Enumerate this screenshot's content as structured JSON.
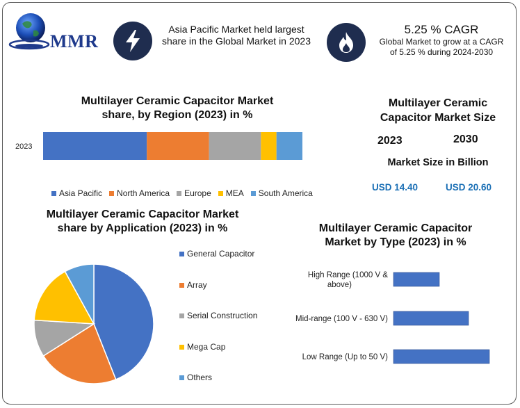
{
  "brand": {
    "logo_text": "MMR"
  },
  "header": {
    "highlight_text": "Asia Pacific Market held largest share in the Global Market in 2023",
    "cagr_title": "5.25 % CAGR",
    "cagr_text": "Global Market to grow at a CAGR of 5.25 % during 2024-2030"
  },
  "icons": {
    "bolt": "lightning-bolt-icon",
    "flame": "flame-icon",
    "globe": "globe-icon"
  },
  "region_chart": {
    "title": "Multilayer Ceramic Capacitor Market share, by Region (2023) in %"
  },
  "market_size": {
    "title": "Multilayer Ceramic Capacitor Market Size",
    "year_1": "2023",
    "year_2": "2030",
    "subtitle": "Market Size in Billion",
    "value_1": "USD 14.40",
    "value_2": "USD 20.60",
    "value_color": "#1a6fb5"
  },
  "application_chart": {
    "title": "Multilayer Ceramic Capacitor Market share by Application (2023) in %"
  },
  "type_chart": {
    "title": "Multilayer Ceramic Capacitor Market by Type (2023) in %"
  },
  "chart_data": [
    {
      "type": "bar",
      "orientation": "horizontal-stacked",
      "title": "Multilayer Ceramic Capacitor Market share, by Region (2023) in %",
      "categories": [
        "2023"
      ],
      "legend_position": "bottom",
      "series": [
        {
          "name": "Asia Pacific",
          "values": [
            40
          ],
          "color": "#4472C4"
        },
        {
          "name": "North America",
          "values": [
            24
          ],
          "color": "#ED7D31"
        },
        {
          "name": "Europe",
          "values": [
            20
          ],
          "color": "#A5A5A5"
        },
        {
          "name": "MEA",
          "values": [
            6
          ],
          "color": "#FFC000"
        },
        {
          "name": "South America",
          "values": [
            10
          ],
          "color": "#5B9BD5"
        }
      ]
    },
    {
      "type": "pie",
      "title": "Multilayer Ceramic Capacitor Market share by Application (2023) in %",
      "legend_position": "right",
      "labels": [
        "General Capacitor",
        "Array",
        "Serial Construction",
        "Mega Cap",
        "Others"
      ],
      "values": [
        44,
        22,
        10,
        16,
        8
      ],
      "colors": [
        "#4472C4",
        "#ED7D31",
        "#A5A5A5",
        "#FFC000",
        "#5B9BD5"
      ]
    },
    {
      "type": "bar",
      "orientation": "horizontal",
      "title": "Multilayer Ceramic Capacitor Market by Type (2023) in %",
      "categories": [
        "High Range (1000 V & above)",
        "Mid-range (100 V - 630 V)",
        "Low Range (Up to 50 V)"
      ],
      "values": [
        22,
        36,
        46
      ],
      "color": "#4472C4",
      "grid": false
    }
  ]
}
